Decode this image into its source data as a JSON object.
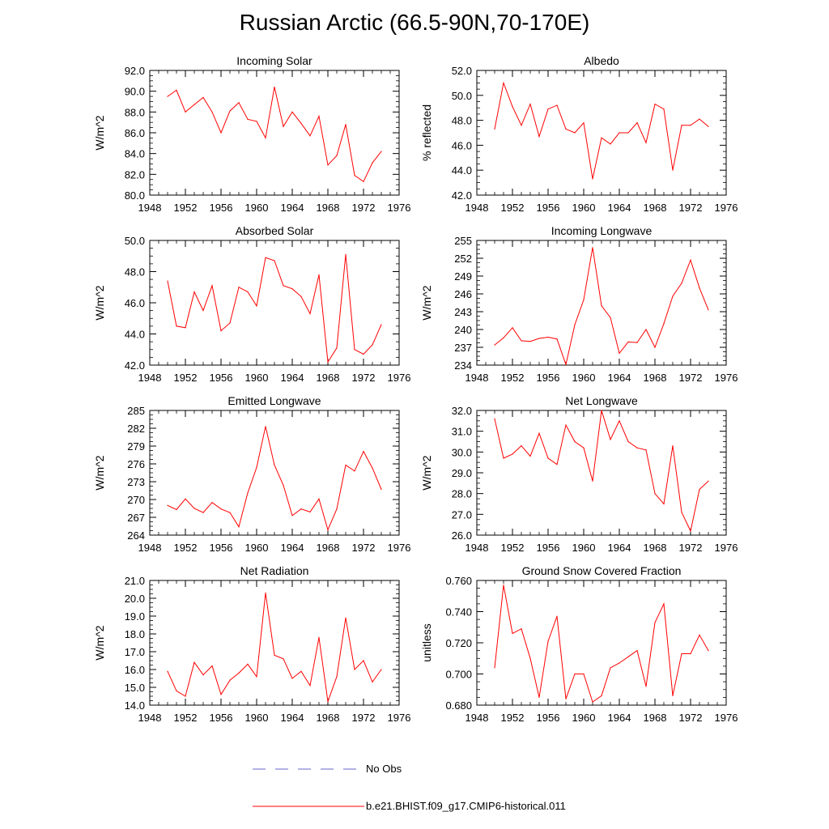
{
  "figure_title": "Russian Arctic (66.5-90N,70-170E)",
  "legend": {
    "obs_label": "No Obs",
    "model_label": "b.e21.BHIST.f09_g17.CMIP6-historical.011",
    "obs_color": "#6666cc",
    "model_color": "#ff0000"
  },
  "chart_data": [
    {
      "type": "line",
      "title": "Incoming Solar",
      "ylabel": "W/m^2",
      "xlim": [
        1948,
        1976
      ],
      "ylim": [
        80.0,
        92.0
      ],
      "xticks": [
        "1948",
        "1952",
        "1956",
        "1960",
        "1964",
        "1968",
        "1972",
        "1976"
      ],
      "yticks": [
        "80.0",
        "82.0",
        "84.0",
        "86.0",
        "88.0",
        "90.0",
        "92.0"
      ],
      "series": [
        {
          "name": "b.e21.BHIST.f09_g17.CMIP6-historical.011",
          "x": [
            1950,
            1951,
            1952,
            1953,
            1954,
            1955,
            1956,
            1957,
            1958,
            1959,
            1960,
            1961,
            1962,
            1963,
            1964,
            1965,
            1966,
            1967,
            1968,
            1969,
            1970,
            1971,
            1972,
            1973,
            1974
          ],
          "values": [
            89.5,
            90.1,
            88.0,
            88.7,
            89.4,
            88.0,
            86.0,
            88.1,
            88.9,
            87.3,
            87.1,
            85.5,
            90.4,
            86.6,
            88.0,
            86.9,
            85.7,
            87.6,
            82.9,
            83.8,
            86.8,
            81.9,
            81.3,
            83.1,
            84.2
          ]
        }
      ]
    },
    {
      "type": "line",
      "title": "Albedo",
      "ylabel": "% reflected",
      "xlim": [
        1948,
        1976
      ],
      "ylim": [
        42.0,
        52.0
      ],
      "xticks": [
        "1948",
        "1952",
        "1956",
        "1960",
        "1964",
        "1968",
        "1972",
        "1976"
      ],
      "yticks": [
        "42.0",
        "44.0",
        "46.0",
        "48.0",
        "50.0",
        "52.0"
      ],
      "series": [
        {
          "name": "b.e21.BHIST.f09_g17.CMIP6-historical.011",
          "x": [
            1950,
            1951,
            1952,
            1953,
            1954,
            1955,
            1956,
            1957,
            1958,
            1959,
            1960,
            1961,
            1962,
            1963,
            1964,
            1965,
            1966,
            1967,
            1968,
            1969,
            1970,
            1971,
            1972,
            1973,
            1974
          ],
          "values": [
            47.3,
            51.0,
            49.1,
            47.6,
            49.3,
            46.7,
            48.9,
            49.2,
            47.3,
            47.0,
            47.8,
            43.3,
            46.6,
            46.1,
            47.0,
            47.0,
            47.8,
            46.2,
            49.3,
            48.9,
            44.0,
            47.6,
            47.6,
            48.1,
            47.5
          ]
        }
      ]
    },
    {
      "type": "line",
      "title": "Absorbed Solar",
      "ylabel": "W/m^2",
      "xlim": [
        1948,
        1976
      ],
      "ylim": [
        42.0,
        50.0
      ],
      "xticks": [
        "1948",
        "1952",
        "1956",
        "1960",
        "1964",
        "1968",
        "1972",
        "1976"
      ],
      "yticks": [
        "42.0",
        "44.0",
        "46.0",
        "48.0",
        "50.0"
      ],
      "series": [
        {
          "name": "b.e21.BHIST.f09_g17.CMIP6-historical.011",
          "x": [
            1950,
            1951,
            1952,
            1953,
            1954,
            1955,
            1956,
            1957,
            1958,
            1959,
            1960,
            1961,
            1962,
            1963,
            1964,
            1965,
            1966,
            1967,
            1968,
            1969,
            1970,
            1971,
            1972,
            1973,
            1974
          ],
          "values": [
            47.4,
            44.5,
            44.4,
            46.7,
            45.5,
            47.1,
            44.2,
            44.7,
            47.0,
            46.7,
            45.8,
            48.9,
            48.7,
            47.1,
            46.9,
            46.4,
            45.3,
            47.8,
            42.2,
            43.1,
            49.1,
            43.0,
            42.7,
            43.3,
            44.6
          ]
        }
      ]
    },
    {
      "type": "line",
      "title": "Incoming Longwave",
      "ylabel": "W/m^2",
      "xlim": [
        1948,
        1976
      ],
      "ylim": [
        234,
        255
      ],
      "xticks": [
        "1948",
        "1952",
        "1956",
        "1960",
        "1964",
        "1968",
        "1972",
        "1976"
      ],
      "yticks": [
        "234",
        "237",
        "240",
        "243",
        "246",
        "249",
        "252",
        "255"
      ],
      "series": [
        {
          "name": "b.e21.BHIST.f09_g17.CMIP6-historical.011",
          "x": [
            1950,
            1951,
            1952,
            1953,
            1954,
            1955,
            1956,
            1957,
            1958,
            1959,
            1960,
            1961,
            1962,
            1963,
            1964,
            1965,
            1966,
            1967,
            1968,
            1969,
            1970,
            1971,
            1972,
            1973,
            1974
          ],
          "values": [
            237.4,
            238.6,
            240.3,
            238.1,
            238.0,
            238.5,
            238.7,
            238.4,
            234.1,
            240.8,
            245.0,
            253.8,
            244.0,
            242.0,
            236.0,
            237.9,
            237.8,
            240.0,
            237.0,
            241.0,
            245.6,
            247.8,
            251.7,
            247.0,
            243.3
          ]
        }
      ]
    },
    {
      "type": "line",
      "title": "Emitted Longwave",
      "ylabel": "W/m^2",
      "xlim": [
        1948,
        1976
      ],
      "ylim": [
        264,
        285
      ],
      "xticks": [
        "1948",
        "1952",
        "1956",
        "1960",
        "1964",
        "1968",
        "1972",
        "1976"
      ],
      "yticks": [
        "264",
        "267",
        "270",
        "273",
        "276",
        "279",
        "282",
        "285"
      ],
      "series": [
        {
          "name": "b.e21.BHIST.f09_g17.CMIP6-historical.011",
          "x": [
            1950,
            1951,
            1952,
            1953,
            1954,
            1955,
            1956,
            1957,
            1958,
            1959,
            1960,
            1961,
            1962,
            1963,
            1964,
            1965,
            1966,
            1967,
            1968,
            1969,
            1970,
            1971,
            1972,
            1973,
            1974
          ],
          "values": [
            269.0,
            268.3,
            270.1,
            268.5,
            267.8,
            269.5,
            268.4,
            267.8,
            265.4,
            271.1,
            275.4,
            282.3,
            275.8,
            272.4,
            267.3,
            268.4,
            267.9,
            270.1,
            264.9,
            268.4,
            275.8,
            274.8,
            278.1,
            275.3,
            271.7
          ]
        }
      ]
    },
    {
      "type": "line",
      "title": "Net Longwave",
      "ylabel": "W/m^2",
      "xlim": [
        1948,
        1976
      ],
      "ylim": [
        26.0,
        32.0
      ],
      "xticks": [
        "1948",
        "1952",
        "1956",
        "1960",
        "1964",
        "1968",
        "1972",
        "1976"
      ],
      "yticks": [
        "26.0",
        "27.0",
        "28.0",
        "29.0",
        "30.0",
        "31.0",
        "32.0"
      ],
      "series": [
        {
          "name": "b.e21.BHIST.f09_g17.CMIP6-historical.011",
          "x": [
            1950,
            1951,
            1952,
            1953,
            1954,
            1955,
            1956,
            1957,
            1958,
            1959,
            1960,
            1961,
            1962,
            1963,
            1964,
            1965,
            1966,
            1967,
            1968,
            1969,
            1970,
            1971,
            1972,
            1973,
            1974
          ],
          "values": [
            31.6,
            29.7,
            29.9,
            30.3,
            29.8,
            30.9,
            29.7,
            29.4,
            31.3,
            30.5,
            30.2,
            28.6,
            32.0,
            30.6,
            31.5,
            30.5,
            30.2,
            30.1,
            28.0,
            27.5,
            30.3,
            27.1,
            26.2,
            28.2,
            28.6
          ]
        }
      ]
    },
    {
      "type": "line",
      "title": "Net Radiation",
      "ylabel": "W/m^2",
      "xlim": [
        1948,
        1976
      ],
      "ylim": [
        14.0,
        21.0
      ],
      "xticks": [
        "1948",
        "1952",
        "1956",
        "1960",
        "1964",
        "1968",
        "1972",
        "1976"
      ],
      "yticks": [
        "14.0",
        "15.0",
        "16.0",
        "17.0",
        "18.0",
        "19.0",
        "20.0",
        "21.0"
      ],
      "series": [
        {
          "name": "b.e21.BHIST.f09_g17.CMIP6-historical.011",
          "x": [
            1950,
            1951,
            1952,
            1953,
            1954,
            1955,
            1956,
            1957,
            1958,
            1959,
            1960,
            1961,
            1962,
            1963,
            1964,
            1965,
            1966,
            1967,
            1968,
            1969,
            1970,
            1971,
            1972,
            1973,
            1974
          ],
          "values": [
            15.9,
            14.8,
            14.5,
            16.4,
            15.7,
            16.2,
            14.6,
            15.4,
            15.8,
            16.3,
            15.6,
            20.3,
            16.8,
            16.6,
            15.5,
            15.9,
            15.1,
            17.8,
            14.2,
            15.6,
            18.9,
            16.0,
            16.5,
            15.3,
            16.0
          ]
        }
      ]
    },
    {
      "type": "line",
      "title": "Ground Snow Covered Fraction",
      "ylabel": "unitless",
      "xlim": [
        1948,
        1976
      ],
      "ylim": [
        0.68,
        0.76
      ],
      "xticks": [
        "1948",
        "1952",
        "1956",
        "1960",
        "1964",
        "1968",
        "1972",
        "1976"
      ],
      "yticks": [
        "0.680",
        "0.700",
        "0.720",
        "0.740",
        "0.760"
      ],
      "series": [
        {
          "name": "b.e21.BHIST.f09_g17.CMIP6-historical.011",
          "x": [
            1950,
            1951,
            1952,
            1953,
            1954,
            1955,
            1956,
            1957,
            1958,
            1959,
            1960,
            1961,
            1962,
            1963,
            1964,
            1965,
            1966,
            1967,
            1968,
            1969,
            1970,
            1971,
            1972,
            1973,
            1974
          ],
          "values": [
            0.704,
            0.757,
            0.726,
            0.729,
            0.71,
            0.685,
            0.721,
            0.737,
            0.684,
            0.7,
            0.7,
            0.682,
            0.686,
            0.704,
            0.707,
            0.711,
            0.715,
            0.692,
            0.733,
            0.745,
            0.686,
            0.713,
            0.713,
            0.725,
            0.715
          ]
        }
      ]
    }
  ]
}
